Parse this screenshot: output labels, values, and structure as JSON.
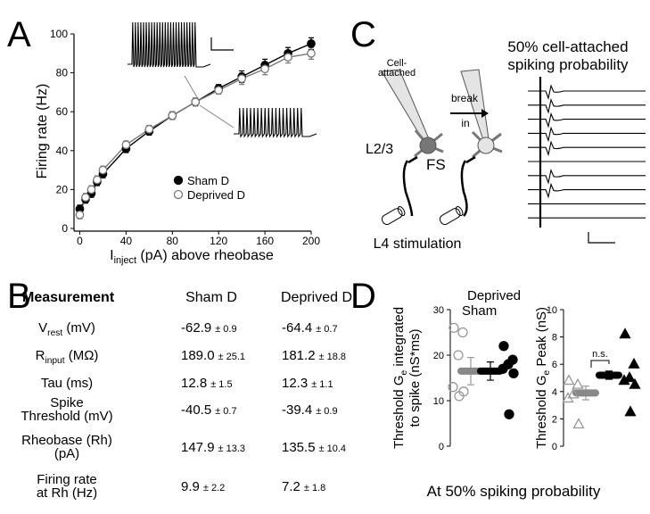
{
  "panel_labels": [
    "A",
    "B",
    "C",
    "D"
  ],
  "chart_data": [
    {
      "type": "line",
      "y_label": "Firing rate (Hz)",
      "x_label": [
        "I",
        "inject",
        " (pA) above rheobase"
      ],
      "x": [
        0,
        5,
        10,
        15,
        20,
        40,
        60,
        80,
        100,
        120,
        140,
        160,
        180,
        200
      ],
      "xlim": [
        -5,
        200
      ],
      "ylim": [
        0,
        100
      ],
      "xticks": [
        0,
        40,
        80,
        120,
        160,
        200
      ],
      "yticks": [
        0,
        20,
        40,
        60,
        80,
        100
      ],
      "series": [
        {
          "name": "Sham D",
          "color": "#000000",
          "marker": "filled-circle",
          "values": [
            10,
            15,
            18,
            24,
            28,
            41,
            50,
            58,
            65,
            72,
            78,
            84,
            90,
            95
          ],
          "errors": [
            2,
            2,
            2,
            2,
            2,
            2,
            2,
            2,
            2,
            2,
            3,
            3,
            3,
            3
          ]
        },
        {
          "name": "Deprived D",
          "color": "#777777",
          "marker": "open-circle",
          "values": [
            7,
            16,
            20,
            25,
            30,
            43,
            51,
            58,
            65,
            71,
            77,
            82,
            88,
            90
          ],
          "errors": [
            2,
            2,
            2,
            2,
            2,
            2,
            2,
            2,
            2,
            2,
            3,
            3,
            3,
            3
          ]
        }
      ]
    },
    {
      "type": "dot",
      "ylim": [
        0,
        30
      ],
      "yticks": [
        0,
        10,
        20,
        30
      ],
      "y_label": [
        [
          "Threshold G",
          "e",
          " integrated"
        ],
        [
          "to spike (nS*ms)"
        ]
      ],
      "series": [
        {
          "name": "Deprived",
          "color": "#999999",
          "marker": "open-circle",
          "values": [
            26,
            25,
            20,
            13,
            12,
            11
          ],
          "mean": 16.5,
          "error": 3
        },
        {
          "name": "Sham",
          "color": "#000000",
          "marker": "filled-circle",
          "values": [
            22,
            19,
            18,
            17,
            16,
            7
          ],
          "mean": 16.5,
          "error": 2
        }
      ]
    },
    {
      "type": "dot",
      "ylim": [
        0,
        10
      ],
      "yticks": [
        0,
        2,
        4,
        6,
        8,
        10
      ],
      "y_label": [
        [
          "Threshold G",
          "e",
          " Peak (nS)"
        ]
      ],
      "annotation": "n.s.",
      "series": [
        {
          "color": "#999999",
          "marker": "open-triangle",
          "values": [
            4.8,
            4.5,
            3.8,
            3.5,
            1.6
          ],
          "mean": 3.9,
          "error": 0.5
        },
        {
          "color": "#000000",
          "marker": "filled-triangle",
          "values": [
            8.2,
            6,
            5,
            4.8,
            4.5,
            2.5
          ],
          "mean": 5.2,
          "error": 0.3
        }
      ]
    }
  ],
  "table": {
    "header": [
      "Measurement",
      "Sham D",
      "Deprived D"
    ],
    "rows": [
      {
        "label": [
          [
            "V",
            "rest",
            " (mV)"
          ]
        ],
        "sham": [
          "-62.9",
          "± 0.9"
        ],
        "deprived": [
          "-64.4",
          "± 0.7"
        ]
      },
      {
        "label": [
          [
            "R",
            "input",
            " (MΩ)"
          ]
        ],
        "sham": [
          "189.0",
          "± 25.1"
        ],
        "deprived": [
          "181.2",
          "± 18.8"
        ]
      },
      {
        "label": [
          [
            "Tau (ms)"
          ]
        ],
        "sham": [
          "12.8",
          "± 1.5"
        ],
        "deprived": [
          "12.3",
          "± 1.1"
        ]
      },
      {
        "label": [
          [
            "Spike"
          ],
          [
            "Threshold (mV)"
          ]
        ],
        "sham": [
          "-40.5",
          "± 0.7"
        ],
        "deprived": [
          "-39.4",
          "± 0.9"
        ]
      },
      {
        "label": [
          [
            "Rheobase (Rh)"
          ],
          [
            "(pA)"
          ]
        ],
        "sham": [
          "147.9",
          "± 13.3"
        ],
        "deprived": [
          "135.5",
          "± 10.4"
        ]
      },
      {
        "label": [
          [
            "Firing rate"
          ],
          [
            "at Rh (Hz)"
          ]
        ],
        "sham": [
          "9.9",
          "± 2.2"
        ],
        "deprived": [
          "7.2",
          "± 1.8"
        ]
      }
    ]
  },
  "diagram": {
    "title": [
      "50% cell-attached",
      "spiking probability"
    ],
    "pipette": [
      "Cell-",
      "attached"
    ],
    "arrow": [
      "break",
      "in"
    ],
    "layer": "L2/3",
    "cell": "FS",
    "stimulation": "L4 stimulation"
  },
  "footer": "At 50% spiking probability"
}
